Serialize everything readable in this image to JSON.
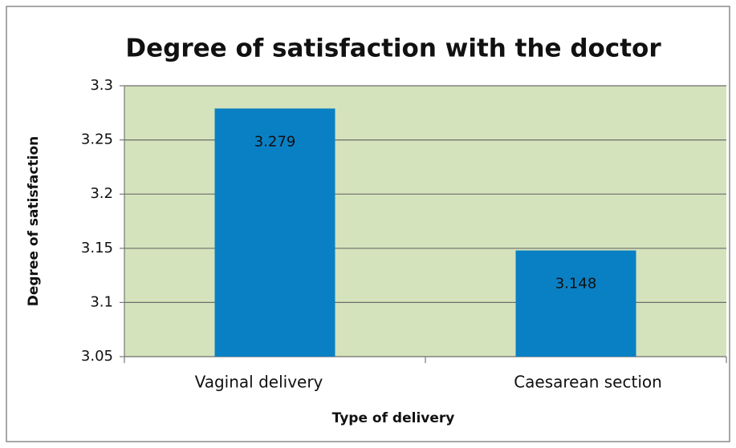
{
  "chart_data": {
    "type": "bar",
    "title": "Degree of satisfaction with the doctor",
    "x_label": "Type of delivery",
    "y_label": "Degree of satisfaction",
    "categories": [
      "Vaginal delivery",
      "Caesarean section"
    ],
    "values": [
      3.279,
      3.148
    ],
    "color": "#0a80c4",
    "ylim": [
      3.05,
      3.3
    ],
    "yticks": [
      3.05,
      3.1,
      3.15,
      3.2,
      3.25,
      3.3
    ],
    "grid": true
  }
}
